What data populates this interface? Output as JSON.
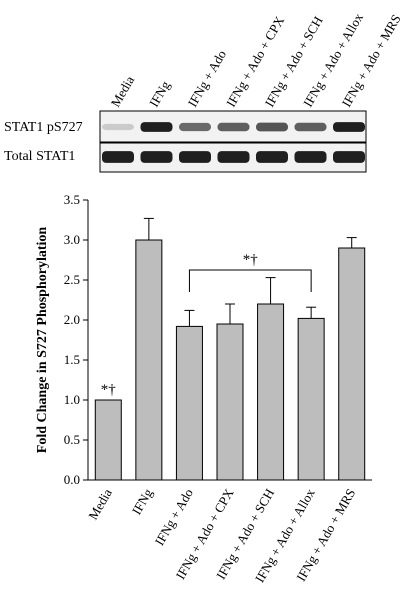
{
  "blot": {
    "lanes": [
      "Media",
      "IFNg",
      "IFNg + Ado",
      "IFNg + Ado + CPX",
      "IFNg + Ado + SCH",
      "IFNg + Ado + Allox",
      "IFNg + Ado + MRS"
    ],
    "rows": [
      {
        "label": "STAT1 pS727",
        "band_intensity": [
          0.15,
          0.95,
          0.6,
          0.65,
          0.7,
          0.65,
          0.95
        ]
      },
      {
        "label": "Total STAT1",
        "band_intensity": [
          0.95,
          0.95,
          0.95,
          0.95,
          0.95,
          0.95,
          0.95
        ]
      }
    ]
  },
  "chart_data": {
    "type": "bar",
    "categories": [
      "Media",
      "IFNg",
      "IFNg + Ado",
      "IFNg + Ado + CPX",
      "IFNg + Ado + SCH",
      "IFNg + Ado + Allox",
      "IFNg + Ado + MRS"
    ],
    "values": [
      1.0,
      3.0,
      1.92,
      1.95,
      2.2,
      2.02,
      2.9
    ],
    "errors": [
      0.0,
      0.27,
      0.2,
      0.25,
      0.33,
      0.14,
      0.13
    ],
    "ylabel": "Fold Change in S727 Phosphorylation",
    "xlabel": "",
    "ylim": [
      0.0,
      3.5
    ],
    "yticks": [
      "0.0",
      "0.5",
      "1.0",
      "1.5",
      "2.0",
      "2.5",
      "3.0",
      "3.5"
    ],
    "bar_color": "#bdbdbd",
    "annotations": [
      {
        "text": "*†",
        "category_index": 0
      },
      {
        "text": "*†",
        "bracket_from": 2,
        "bracket_to": 5
      }
    ]
  }
}
